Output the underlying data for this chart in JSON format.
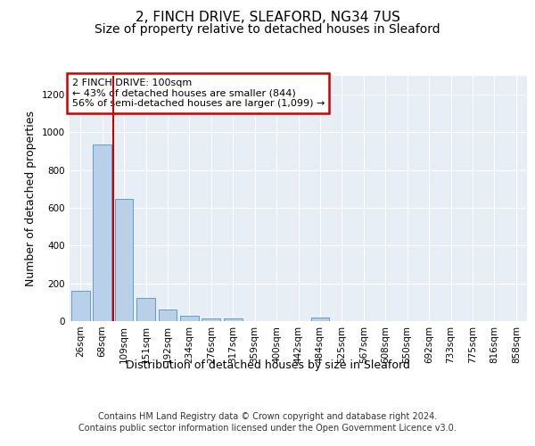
{
  "title": "2, FINCH DRIVE, SLEAFORD, NG34 7US",
  "subtitle": "Size of property relative to detached houses in Sleaford",
  "xlabel": "Distribution of detached houses by size in Sleaford",
  "ylabel": "Number of detached properties",
  "footer_line1": "Contains HM Land Registry data © Crown copyright and database right 2024.",
  "footer_line2": "Contains public sector information licensed under the Open Government Licence v3.0.",
  "categories": [
    "26sqm",
    "68sqm",
    "109sqm",
    "151sqm",
    "192sqm",
    "234sqm",
    "276sqm",
    "317sqm",
    "359sqm",
    "400sqm",
    "442sqm",
    "484sqm",
    "525sqm",
    "567sqm",
    "608sqm",
    "650sqm",
    "692sqm",
    "733sqm",
    "775sqm",
    "816sqm",
    "858sqm"
  ],
  "values": [
    160,
    935,
    648,
    122,
    62,
    28,
    12,
    12,
    0,
    0,
    0,
    18,
    0,
    0,
    0,
    0,
    0,
    0,
    0,
    0,
    0
  ],
  "bar_color": "#b8d0e8",
  "bar_edge_color": "#6699cc",
  "vline_color": "#cc0000",
  "annotation_text": "2 FINCH DRIVE: 100sqm\n← 43% of detached houses are smaller (844)\n56% of semi-detached houses are larger (1,099) →",
  "annotation_box_color": "#ffffff",
  "annotation_box_edge": "#cc0000",
  "ylim": [
    0,
    1300
  ],
  "yticks": [
    0,
    200,
    400,
    600,
    800,
    1000,
    1200
  ],
  "fig_bg_color": "#ffffff",
  "plot_bg_color": "#e8eef6",
  "title_fontsize": 11,
  "subtitle_fontsize": 10,
  "tick_fontsize": 7.5,
  "ylabel_fontsize": 9,
  "xlabel_fontsize": 9,
  "footer_fontsize": 7,
  "annotation_fontsize": 8
}
